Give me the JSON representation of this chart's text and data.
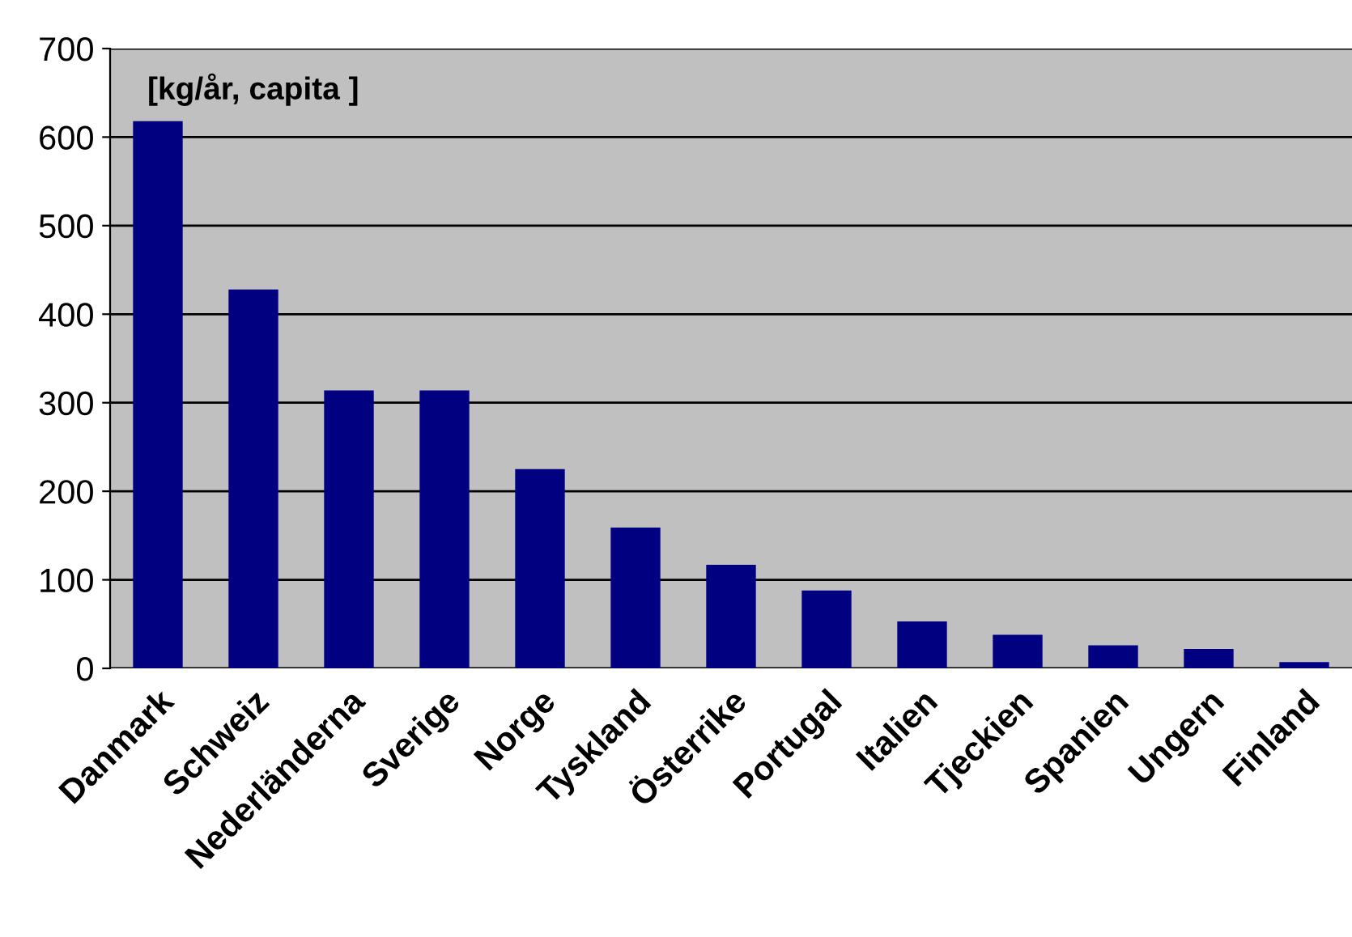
{
  "chart_data": {
    "type": "bar",
    "annotations": [
      "[kg/år, capita ]"
    ],
    "categories": [
      "Danmark",
      "Schweiz",
      "Nederländerna",
      "Sverige",
      "Norge",
      "Tyskland",
      "Österrike",
      "Portugal",
      "Italien",
      "Tjeckien",
      "Spanien",
      "Ungern",
      "Finland"
    ],
    "values": [
      618,
      428,
      314,
      314,
      225,
      159,
      117,
      88,
      53,
      38,
      26,
      22,
      7
    ],
    "color": "#000080",
    "ylim": [
      0,
      700
    ],
    "yticks": [
      0,
      100,
      200,
      300,
      400,
      500,
      600,
      700
    ],
    "grid": "y"
  }
}
